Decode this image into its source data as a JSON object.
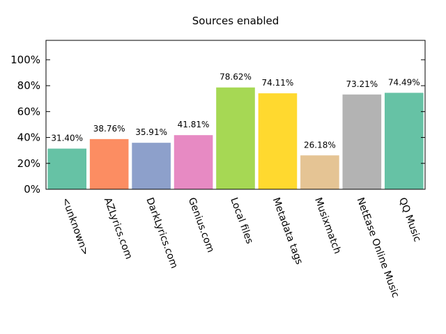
{
  "chart_data": {
    "type": "bar",
    "title": "Sources enabled",
    "xlabel": "",
    "ylabel": "",
    "categories": [
      "<unknown>",
      "AZLyrics.com",
      "DarkLyrics.com",
      "Genius.com",
      "Local files",
      "Metadata tags",
      "Musixmatch",
      "NetEase Online Music",
      "QQ Music"
    ],
    "values": [
      31.4,
      38.76,
      35.91,
      41.81,
      78.62,
      74.11,
      26.18,
      73.21,
      74.49
    ],
    "value_labels": [
      "31.40%",
      "38.76%",
      "35.91%",
      "41.81%",
      "78.62%",
      "74.11%",
      "26.18%",
      "73.21%",
      "74.49%"
    ],
    "colors": [
      "#66c2a5",
      "#fc8d62",
      "#8da0cb",
      "#e78ac3",
      "#a6d854",
      "#ffd92f",
      "#e5c494",
      "#b3b3b3",
      "#66c2a5"
    ],
    "ylim": [
      0,
      115
    ],
    "yticks": [
      0,
      20,
      40,
      60,
      80,
      100
    ],
    "ytick_labels": [
      "0%",
      "20%",
      "40%",
      "60%",
      "80%",
      "100%"
    ],
    "grid": false,
    "legend": "none"
  }
}
